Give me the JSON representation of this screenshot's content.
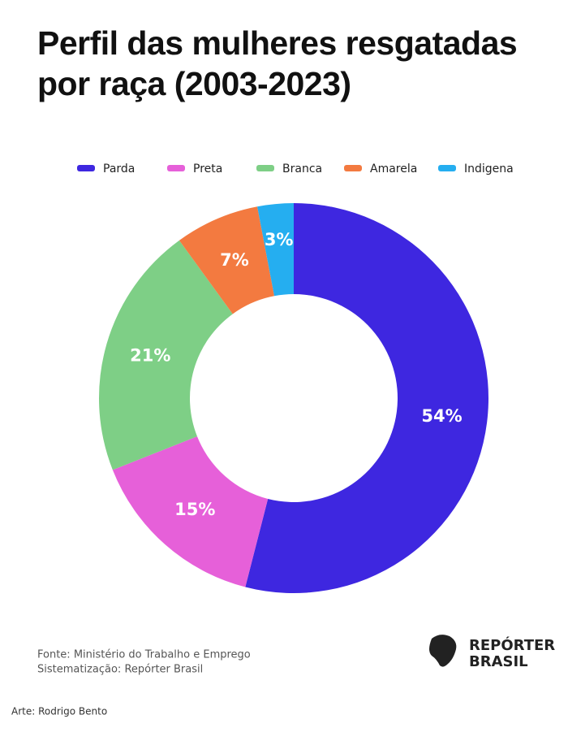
{
  "chart_data": {
    "type": "donut",
    "title": "Perfil das mulheres resgatadas por raça (2003-2023)",
    "categories": [
      "Parda",
      "Preta",
      "Branca",
      "Amarela",
      "Indigena"
    ],
    "values": [
      54,
      15,
      21,
      7,
      3
    ],
    "value_labels": [
      "54%",
      "15%",
      "21%",
      "7%",
      "3%"
    ],
    "colors": [
      "#3e27e0",
      "#e660d9",
      "#7ecf86",
      "#f37a40",
      "#25aef0"
    ],
    "legend": "top",
    "source": [
      "Fonte: Ministério do Trabalho e Emprego",
      "Sistematização: Repórter Brasil"
    ],
    "credit": "Arte: Rodrigo Bento",
    "logo": [
      "REPÓRTER",
      "BRASIL"
    ]
  }
}
